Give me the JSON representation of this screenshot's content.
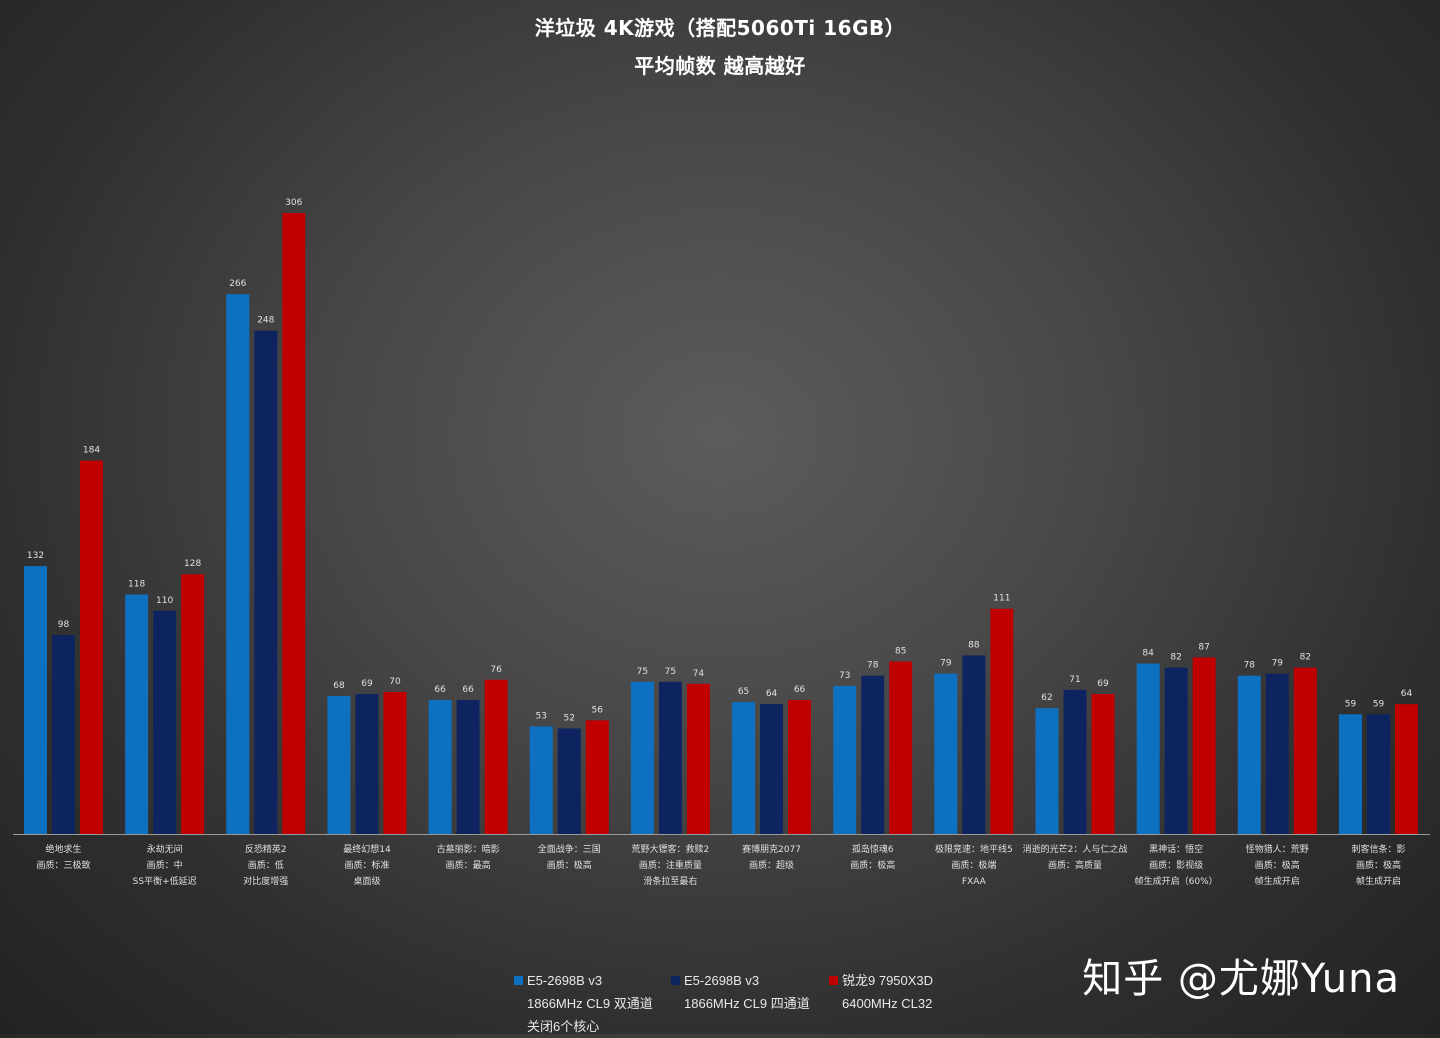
{
  "chart_data": {
    "type": "bar",
    "title": "洋垃圾 4K游戏（搭配5060Ti 16GB）",
    "subtitle": "平均帧数 越高越好",
    "categories": [
      [
        "绝地求生",
        "画质：三极致"
      ],
      [
        "永劫无间",
        "画质：中",
        "SS平衡+低延迟"
      ],
      [
        "反恐精英2",
        "画质：低",
        "对比度增强"
      ],
      [
        "最终幻想14",
        "画质：标准",
        "桌面级"
      ],
      [
        "古墓丽影：暗影",
        "画质：最高"
      ],
      [
        "全面战争：三国",
        "画质：极高"
      ],
      [
        "荒野大镖客：救赎2",
        "画质：注重质量",
        "滑条拉至最右"
      ],
      [
        "赛博朋克2077",
        "画质：超级"
      ],
      [
        "孤岛惊魂6",
        "画质：极高"
      ],
      [
        "极限竞速：地平线5",
        "画质：极端",
        "FXAA"
      ],
      [
        "消逝的光芒2：人与仁之战",
        "画质：高质量"
      ],
      [
        "黑神话：悟空",
        "画质：影视级",
        "帧生成开启（60%）"
      ],
      [
        "怪物猎人：荒野",
        "画质：极高",
        "帧生成开启"
      ],
      [
        "刺客信条：影",
        "画质：极高",
        "帧生成开启"
      ]
    ],
    "series": [
      {
        "name": "E5-2698B v3",
        "detail": [
          "1866MHz CL9 双通道",
          "关闭6个核心"
        ],
        "color": "#0e70c0",
        "values": [
          132,
          118,
          266,
          68,
          66,
          53,
          75,
          65,
          73,
          79,
          62,
          84,
          78,
          59
        ]
      },
      {
        "name": "E5-2698B v3",
        "detail": [
          "1866MHz CL9 四通道"
        ],
        "color": "#0e2460",
        "values": [
          98,
          110,
          248,
          69,
          66,
          52,
          75,
          64,
          78,
          88,
          71,
          82,
          79,
          59
        ]
      },
      {
        "name": "锐龙9 7950X3D",
        "detail": [
          "6400MHz CL32"
        ],
        "color": "#c00000",
        "values": [
          184,
          128,
          306,
          70,
          76,
          56,
          74,
          66,
          85,
          111,
          69,
          87,
          82,
          64
        ]
      }
    ],
    "ylim": [
      0,
      306
    ],
    "grid": false,
    "legend_position": "bottom"
  },
  "watermark": "知乎 @尤娜Yuna",
  "colors": {
    "label_text": "#e0e0e0",
    "axis_line": "#9a9a9a"
  }
}
